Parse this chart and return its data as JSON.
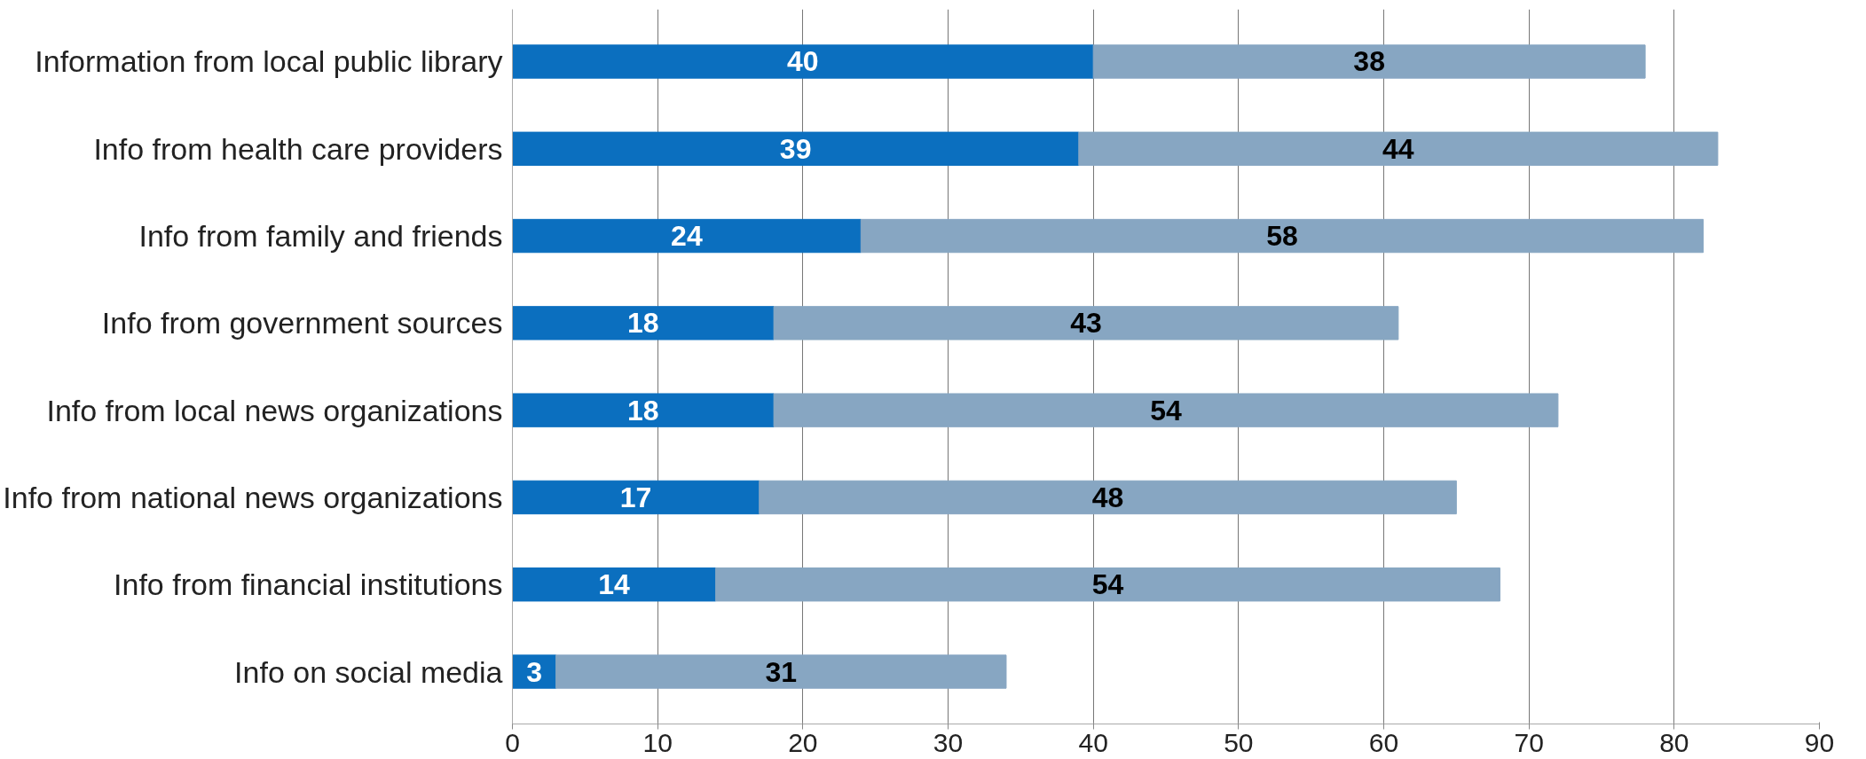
{
  "chart_data": {
    "type": "bar",
    "orientation": "horizontal",
    "stacked": true,
    "categories": [
      "Information from local public library",
      "Info from health care providers",
      "Info from family and friends",
      "Info from government sources",
      "Info from local news organizations",
      "Info from national news organizations",
      "Info from financial institutions",
      "Info on social media"
    ],
    "series": [
      {
        "color": "#0b6fbf",
        "values": [
          40,
          39,
          24,
          18,
          18,
          17,
          14,
          3
        ]
      },
      {
        "color": "#87a6c2",
        "values": [
          38,
          44,
          58,
          43,
          54,
          48,
          54,
          31
        ]
      }
    ],
    "xlim": [
      0,
      90
    ],
    "xticks": [
      0,
      10,
      20,
      30,
      40,
      50,
      60,
      70,
      80,
      90
    ],
    "grid": "x",
    "data_labels": true
  }
}
